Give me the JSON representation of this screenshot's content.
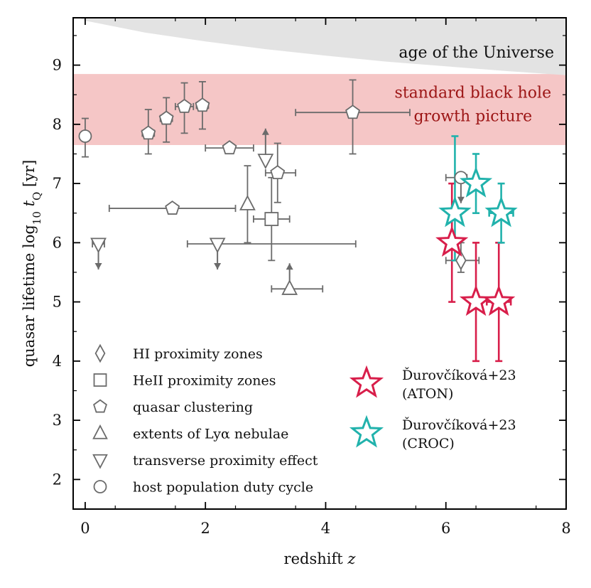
{
  "chart_data": {
    "type": "scatter",
    "title": "",
    "xlabel": "redshift z",
    "ylabel": "quasar lifetime log10 tQ [yr]",
    "xlim": [
      -0.2,
      8.0
    ],
    "ylim": [
      1.5,
      9.8
    ],
    "xticks": [
      0,
      2,
      4,
      6,
      8
    ],
    "yticks": [
      2,
      3,
      4,
      5,
      6,
      7,
      8,
      9
    ],
    "colors": {
      "grey_marker": "#6b6b6b",
      "aton": "#d81e4a",
      "croc": "#21b2ac",
      "band_fill": "#f5c6c6",
      "band_text": "#9c1515",
      "age_fill": "#e3e3e3"
    },
    "bands": [
      {
        "name": "standard black hole growth picture",
        "ymin": 7.65,
        "ymax": 8.85,
        "label_lines": [
          "standard black hole",
          "growth picture"
        ]
      },
      {
        "name": "age of the Universe",
        "label": "age of the Universe",
        "curve_x": [
          -0.2,
          0,
          1,
          2,
          3,
          4,
          5,
          6,
          7,
          8
        ],
        "curve_y": [
          9.85,
          9.75,
          9.55,
          9.4,
          9.27,
          9.16,
          9.06,
          8.98,
          8.9,
          8.83
        ]
      }
    ],
    "series": [
      {
        "name": "HI proximity zones",
        "marker": "diamond",
        "color": "#6b6b6b",
        "points": [
          {
            "x": 6.25,
            "y": 5.7,
            "xerr": [
              0.25,
              0.3
            ],
            "yerr": [
              0.2,
              0.3
            ]
          }
        ]
      },
      {
        "name": "HeII proximity zones",
        "marker": "square",
        "color": "#6b6b6b",
        "points": [
          {
            "x": 3.1,
            "y": 6.4,
            "xerr": [
              0.3,
              0.3
            ],
            "yerr": [
              0.7,
              0.7
            ]
          }
        ]
      },
      {
        "name": "quasar clustering",
        "marker": "pentagon",
        "color": "#6b6b6b",
        "points": [
          {
            "x": 4.45,
            "y": 8.2,
            "xerr": [
              0.95,
              0.95
            ],
            "yerr": [
              0.7,
              0.55
            ]
          },
          {
            "x": 1.05,
            "y": 7.85,
            "xerr": [
              0.1,
              0.1
            ],
            "yerr": [
              0.35,
              0.4
            ]
          },
          {
            "x": 1.35,
            "y": 8.1,
            "xerr": [
              0.1,
              0.1
            ],
            "yerr": [
              0.4,
              0.35
            ]
          },
          {
            "x": 1.65,
            "y": 8.3,
            "xerr": [
              0.15,
              0.15
            ],
            "yerr": [
              0.45,
              0.4
            ]
          },
          {
            "x": 1.95,
            "y": 8.32,
            "xerr": [
              0.1,
              0.1
            ],
            "yerr": [
              0.4,
              0.4
            ]
          },
          {
            "x": 2.4,
            "y": 7.6,
            "xerr": [
              0.4,
              0.4
            ],
            "yerr": [
              0,
              0
            ]
          },
          {
            "x": 3.2,
            "y": 7.18,
            "xerr": [
              0.2,
              0.3
            ],
            "yerr": [
              0.5,
              0.5
            ]
          },
          {
            "x": 1.45,
            "y": 6.58,
            "xerr": [
              1.05,
              1.05
            ],
            "yerr": [
              0,
              0
            ]
          }
        ]
      },
      {
        "name": "extents of Lyα nebulae",
        "marker": "triangle-up",
        "color": "#6b6b6b",
        "points": [
          {
            "x": 2.7,
            "y": 6.65,
            "xerr": [
              0,
              0
            ],
            "yerr": [
              0.65,
              0.65
            ]
          },
          {
            "x": 3.4,
            "y": 5.22,
            "xerr": [
              0.3,
              0.55
            ],
            "yerr": [
              0,
              0
            ],
            "lower_limit": true
          }
        ]
      },
      {
        "name": "transverse proximity effect",
        "marker": "triangle-down",
        "color": "#6b6b6b",
        "points": [
          {
            "x": 0.22,
            "y": 5.98,
            "xerr": [
              0.1,
              0.1
            ],
            "yerr": [
              0,
              0
            ],
            "upper_limit": true
          },
          {
            "x": 2.2,
            "y": 5.98,
            "xerr": [
              0.5,
              2.3
            ],
            "yerr": [
              0,
              0
            ],
            "upper_limit": true
          },
          {
            "x": 3.0,
            "y": 7.4,
            "xerr": [
              0,
              0
            ],
            "yerr": [
              0,
              0
            ],
            "lower_limit_arrow": true
          }
        ]
      },
      {
        "name": "host population duty cycle",
        "marker": "circle",
        "color": "#6b6b6b",
        "points": [
          {
            "x": 0.0,
            "y": 7.8,
            "xerr": [
              0,
              0
            ],
            "yerr": [
              0.35,
              0.3
            ]
          },
          {
            "x": 6.25,
            "y": 7.1,
            "xerr": [
              0.25,
              0.1
            ],
            "yerr": [
              0,
              0
            ],
            "upper_limit": true
          }
        ]
      },
      {
        "name": "Ďurovčíková+23 (ATON)",
        "marker": "star",
        "color": "#d81e4a",
        "points": [
          {
            "x": 6.1,
            "y": 6.0,
            "xerr": [
              0,
              0
            ],
            "yerr": [
              1.0,
              1.0
            ]
          },
          {
            "x": 6.5,
            "y": 5.0,
            "xerr": [
              0.1,
              0.1
            ],
            "yerr": [
              1.0,
              1.0
            ]
          },
          {
            "x": 6.88,
            "y": 5.0,
            "xerr": [
              0.2,
              0.2
            ],
            "yerr": [
              1.0,
              1.0
            ]
          }
        ]
      },
      {
        "name": "Ďurovčíková+23 (CROC)",
        "marker": "star",
        "color": "#21b2ac",
        "points": [
          {
            "x": 6.15,
            "y": 6.5,
            "xerr": [
              0,
              0
            ],
            "yerr": [
              0.8,
              1.3
            ]
          },
          {
            "x": 6.5,
            "y": 7.0,
            "xerr": [
              0.1,
              0.1
            ],
            "yerr": [
              0.5,
              0.5
            ]
          },
          {
            "x": 6.92,
            "y": 6.5,
            "xerr": [
              0.2,
              0.2
            ],
            "yerr": [
              0.5,
              0.5
            ]
          }
        ]
      }
    ],
    "legend_left": [
      {
        "label": "HI proximity zones",
        "marker": "diamond"
      },
      {
        "label": "HeII proximity zones",
        "marker": "square"
      },
      {
        "label": "quasar clustering",
        "marker": "pentagon"
      },
      {
        "label": "extents of Lyα nebulae",
        "marker": "triangle-up"
      },
      {
        "label": "transverse proximity effect",
        "marker": "triangle-down"
      },
      {
        "label": "host population duty cycle",
        "marker": "circle"
      }
    ],
    "legend_right": [
      {
        "label_lines": [
          "Ďurovčíková+23",
          "(ATON)"
        ],
        "marker": "star",
        "color": "#d81e4a"
      },
      {
        "label_lines": [
          "Ďurovčíková+23",
          "(CROC)"
        ],
        "marker": "star",
        "color": "#21b2ac"
      }
    ],
    "legend_placement": "bottom-left"
  }
}
